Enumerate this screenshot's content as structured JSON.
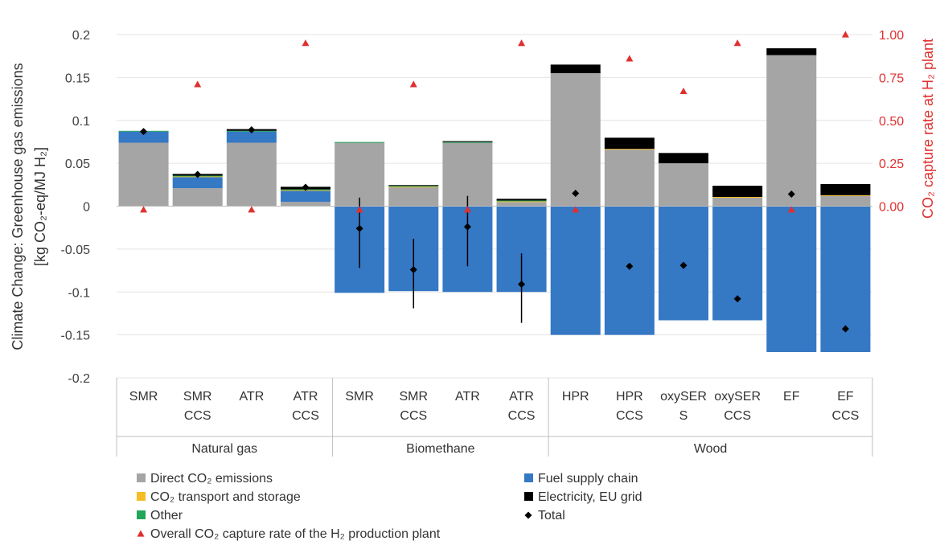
{
  "chart_data": {
    "type": "bar",
    "stacked": true,
    "groups": [
      {
        "name": "Natural gas",
        "categories": [
          "SMR",
          "SMR\nCCS",
          "ATR",
          "ATR\nCCS"
        ]
      },
      {
        "name": "Biomethane",
        "categories": [
          "SMR",
          "SMR\nCCS",
          "ATR",
          "ATR\nCCS"
        ]
      },
      {
        "name": "Wood",
        "categories": [
          "HPR",
          "HPR\nCCS",
          "oxySER\nS",
          "oxySER\nCCS",
          "EF",
          "EF\nCCS"
        ]
      }
    ],
    "ylabel_line1": "Climate Change: Greenhouse gas emissions",
    "ylabel_line2": "[kg CO₂-eq/MJ H₂]",
    "y2label": "CO₂ capture rate at H₂ plant",
    "ylim": [
      -0.2,
      0.2
    ],
    "yticks": [
      0.2,
      0.15,
      0.1,
      0.05,
      0,
      -0.05,
      -0.1,
      -0.15,
      -0.2
    ],
    "ytick_labels": [
      "0.2",
      "0.15",
      "0.1",
      "0.05",
      "0",
      "-0.05",
      "-0.1",
      "-0.15",
      "-0.2"
    ],
    "y2lim": [
      -1.0,
      1.0
    ],
    "y2ticks": [
      1.0,
      0.75,
      0.5,
      0.25,
      0.0
    ],
    "y2tick_labels": [
      "1.00",
      "0.75",
      "0.50",
      "0.25",
      "0.00"
    ],
    "grid": true,
    "series": [
      {
        "name": "Direct CO₂ emissions",
        "color": "#a5a5a5",
        "values": [
          0.074,
          0.021,
          0.074,
          0.005,
          0.074,
          0.022,
          0.074,
          0.005,
          0.155,
          0.066,
          0.05,
          0.01,
          0.176,
          0.012
        ]
      },
      {
        "name": "Fuel supply chain",
        "color": "#3578c4",
        "positive_values": [
          0.013,
          0.013,
          0.013,
          0.013,
          0,
          0,
          0,
          0,
          0,
          0,
          0,
          0,
          0,
          0
        ],
        "negative_values": [
          0,
          0,
          0,
          0,
          -0.101,
          -0.099,
          -0.1,
          -0.1,
          -0.15,
          -0.15,
          -0.133,
          -0.133,
          -0.17,
          -0.17
        ]
      },
      {
        "name": "CO₂ transport and storage",
        "color": "#f7bd27",
        "values": [
          0,
          0.0008,
          0,
          0.0008,
          0,
          0.0008,
          0,
          0.0008,
          0,
          0.0008,
          0,
          0.0008,
          0,
          0.0008
        ]
      },
      {
        "name": "Other",
        "color": "#23a55a",
        "values": [
          0.0008,
          0.0008,
          0.0008,
          0.0008,
          0.0008,
          0.0008,
          0.0008,
          0.0008,
          0,
          0,
          0,
          0,
          0,
          0
        ]
      },
      {
        "name": "Electricity, EU grid",
        "color": "#000000",
        "values": [
          0,
          0.002,
          0.002,
          0.003,
          0,
          0.001,
          0.001,
          0.002,
          0.01,
          0.013,
          0.012,
          0.013,
          0.008,
          0.013
        ]
      }
    ],
    "total": {
      "name": "Total",
      "color": "#000000",
      "values": [
        0.087,
        0.037,
        0.089,
        0.022,
        -0.026,
        -0.074,
        -0.024,
        -0.091,
        0.015,
        -0.07,
        -0.069,
        -0.108,
        0.014,
        -0.143
      ],
      "error_low": [
        null,
        null,
        null,
        null,
        -0.072,
        -0.119,
        -0.07,
        -0.136,
        null,
        null,
        null,
        null,
        null,
        null
      ],
      "error_high": [
        null,
        null,
        null,
        null,
        0.01,
        -0.038,
        0.012,
        -0.055,
        null,
        null,
        null,
        null,
        null,
        null
      ]
    },
    "capture_rate": {
      "name": "Overall CO₂ capture rate of the H₂ production plant",
      "color": "#e0302f",
      "values": [
        -0.02,
        0.71,
        -0.02,
        0.95,
        -0.02,
        0.71,
        -0.02,
        0.95,
        -0.02,
        0.86,
        0.67,
        0.95,
        -0.02,
        1.0
      ]
    },
    "legend": {
      "left": [
        "Direct CO₂ emissions",
        "CO₂ transport and storage",
        "Other",
        "Overall CO₂ capture rate of the H₂ production plant"
      ],
      "right": [
        "Fuel supply chain",
        "Electricity, EU grid",
        "Total"
      ]
    }
  }
}
